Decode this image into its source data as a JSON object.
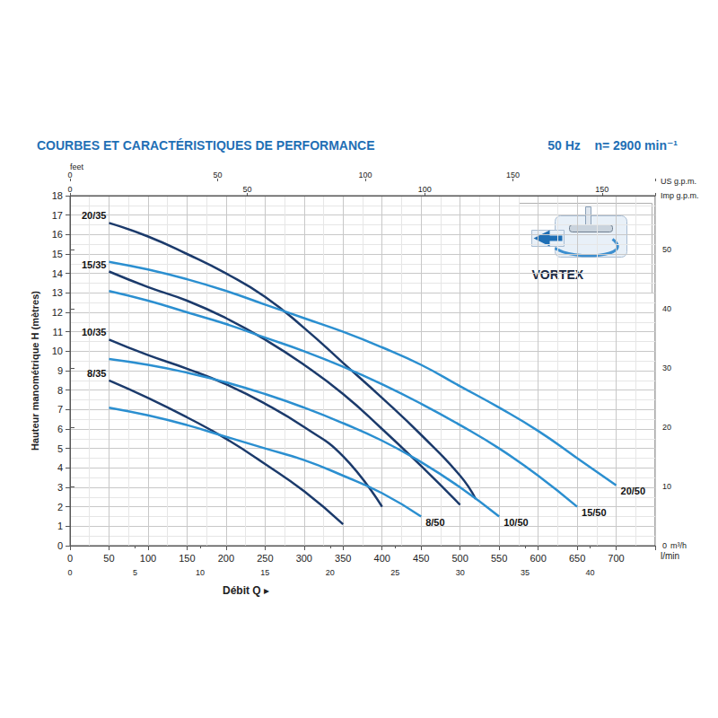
{
  "chart_data": {
    "type": "line",
    "title": "COURBES ET CARACTÉRISTIQUES DE PERFORMANCE",
    "subtitle": "50 Hz    n= 2900 min⁻¹",
    "xlabel": "Débit Q ▸",
    "x_unit": "l/min",
    "ylabel": "Hauteur manométrique H (mètres)",
    "y2label": "feet",
    "annotations": [
      "VORTEX"
    ],
    "xlim": [
      0,
      750
    ],
    "xticks": [
      0,
      50,
      100,
      150,
      200,
      250,
      300,
      350,
      400,
      450,
      500,
      550,
      600,
      650,
      700
    ],
    "ylim": [
      0,
      18
    ],
    "yticks": [
      0,
      1,
      2,
      3,
      4,
      5,
      6,
      7,
      8,
      9,
      10,
      11,
      12,
      13,
      14,
      15,
      16,
      17,
      18
    ],
    "y2lim": [
      0,
      59.06
    ],
    "y2ticks": [
      0,
      10,
      20,
      30,
      40,
      50
    ],
    "secondary_x_axes": [
      {
        "unit": "m³/h",
        "lim": [
          0,
          45
        ],
        "ticks": [
          0,
          5,
          10,
          15,
          20,
          25,
          30,
          35,
          40
        ]
      },
      {
        "unit": "Imp g.p.m.",
        "lim": [
          0,
          164.98
        ],
        "ticks": [
          0,
          50,
          100,
          150
        ]
      },
      {
        "unit": "US g.p.m.",
        "lim": [
          0,
          198.13
        ],
        "ticks": [
          0,
          50,
          100,
          150
        ]
      }
    ],
    "grid": true,
    "series": [
      {
        "name": "20/35",
        "color": "#1b3a6b",
        "x": [
          50,
          100,
          150,
          200,
          250,
          300,
          350,
          400,
          450,
          500,
          520
        ],
        "values": [
          16.6,
          15.9,
          15.0,
          14.0,
          12.8,
          11.2,
          9.4,
          7.6,
          5.7,
          3.6,
          2.4
        ]
      },
      {
        "name": "15/35",
        "color": "#1b3a6b",
        "x": [
          50,
          100,
          150,
          200,
          250,
          300,
          350,
          400,
          450,
          500
        ],
        "values": [
          14.1,
          13.3,
          12.6,
          11.7,
          10.6,
          9.3,
          7.8,
          6.0,
          4.1,
          2.1
        ]
      },
      {
        "name": "10/35",
        "color": "#1b3a6b",
        "x": [
          50,
          100,
          150,
          200,
          250,
          300,
          350,
          400
        ],
        "values": [
          10.6,
          9.8,
          9.1,
          8.3,
          7.3,
          6.1,
          4.6,
          2.0
        ]
      },
      {
        "name": "8/35",
        "color": "#1b3a6b",
        "x": [
          50,
          100,
          150,
          200,
          250,
          300,
          350
        ],
        "values": [
          8.5,
          7.6,
          6.6,
          5.5,
          4.2,
          2.8,
          1.1
        ]
      },
      {
        "name": "20/50",
        "color": "#2b8fd0",
        "x": [
          50,
          100,
          150,
          200,
          250,
          300,
          350,
          400,
          450,
          500,
          550,
          600,
          650,
          700
        ],
        "values": [
          14.6,
          14.2,
          13.7,
          13.1,
          12.4,
          11.7,
          11.0,
          10.2,
          9.3,
          8.2,
          7.1,
          5.9,
          4.5,
          3.1
        ]
      },
      {
        "name": "15/50",
        "color": "#2b8fd0",
        "x": [
          50,
          100,
          150,
          200,
          250,
          300,
          350,
          400,
          450,
          500,
          550,
          600,
          650
        ],
        "values": [
          13.1,
          12.6,
          12.0,
          11.4,
          10.7,
          10.0,
          9.2,
          8.3,
          7.3,
          6.2,
          5.0,
          3.6,
          2.0
        ]
      },
      {
        "name": "10/50",
        "color": "#2b8fd0",
        "x": [
          50,
          100,
          150,
          200,
          250,
          300,
          350,
          400,
          450,
          500,
          550
        ],
        "values": [
          9.6,
          9.3,
          8.9,
          8.4,
          7.8,
          7.1,
          6.3,
          5.4,
          4.3,
          3.0,
          1.5
        ]
      },
      {
        "name": "8/50",
        "color": "#2b8fd0",
        "x": [
          50,
          100,
          150,
          200,
          250,
          300,
          350,
          400,
          450
        ],
        "values": [
          7.1,
          6.7,
          6.2,
          5.6,
          5.0,
          4.4,
          3.6,
          2.7,
          1.5
        ]
      }
    ]
  }
}
